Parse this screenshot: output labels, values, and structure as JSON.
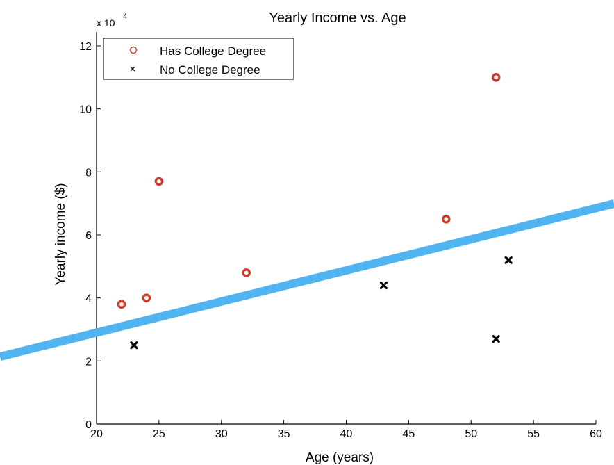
{
  "chart_data": {
    "type": "scatter",
    "title": "Yearly Income vs. Age",
    "xlabel": "Age (years)",
    "ylabel": "Yearly income ($)",
    "y_multiplier_base": "x 10",
    "y_multiplier_exp": "4",
    "xlim": [
      20,
      60
    ],
    "ylim": [
      0,
      12
    ],
    "xticks": [
      20,
      25,
      30,
      35,
      40,
      45,
      50,
      55,
      60
    ],
    "yticks": [
      0,
      2,
      4,
      6,
      8,
      10,
      12
    ],
    "grid": false,
    "legend": {
      "placement": "top-left",
      "entries": [
        "Has College Degree",
        "No College Degree"
      ]
    },
    "series": [
      {
        "name": "Has College Degree",
        "marker": "circle",
        "color": "#d03a2a",
        "points": [
          {
            "x": 22,
            "y": 3.8
          },
          {
            "x": 24,
            "y": 4.0
          },
          {
            "x": 25,
            "y": 7.7
          },
          {
            "x": 32,
            "y": 4.8
          },
          {
            "x": 48,
            "y": 6.5
          },
          {
            "x": 52,
            "y": 11.0
          }
        ]
      },
      {
        "name": "No College Degree",
        "marker": "x",
        "color": "#000000",
        "points": [
          {
            "x": 23,
            "y": 2.5
          },
          {
            "x": 43,
            "y": 4.4
          },
          {
            "x": 52,
            "y": 2.7
          },
          {
            "x": 53,
            "y": 5.2
          }
        ]
      }
    ],
    "fit_line": {
      "color": "#4fb4ef",
      "from": {
        "x": 20,
        "y": 2.9
      },
      "to": {
        "x": 60,
        "y": 6.85
      }
    }
  }
}
